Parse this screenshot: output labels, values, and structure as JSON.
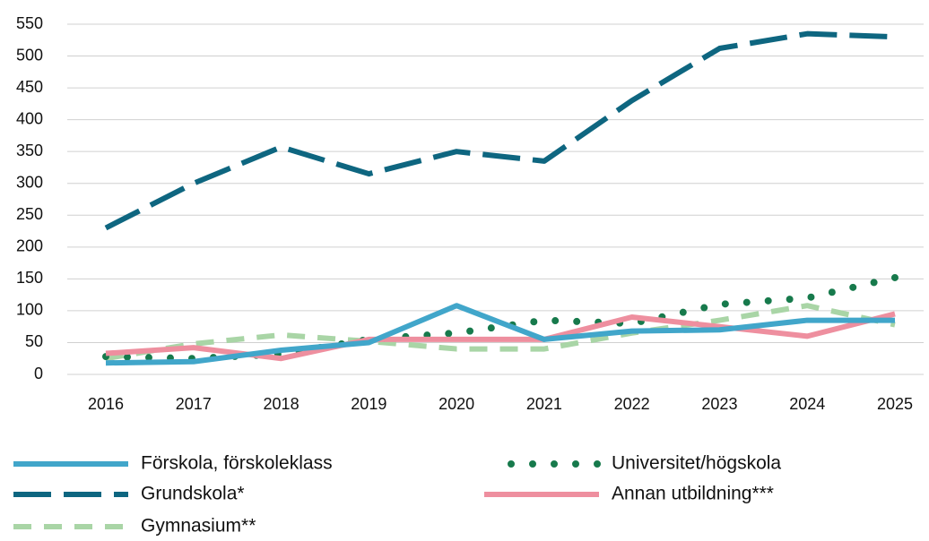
{
  "chart_data": {
    "type": "line",
    "categories": [
      "2016",
      "2017",
      "2018",
      "2019",
      "2020",
      "2021",
      "2022",
      "2023",
      "2024",
      "2025"
    ],
    "series": [
      {
        "name": "Förskola, förskoleklass",
        "color": "#41a6ca",
        "style": "solid",
        "values": [
          18,
          20,
          38,
          50,
          108,
          55,
          68,
          70,
          85,
          85
        ]
      },
      {
        "name": "Grundskola*",
        "color": "#0e6680",
        "style": "dashed",
        "values": [
          230,
          300,
          357,
          315,
          350,
          335,
          430,
          512,
          535,
          530
        ]
      },
      {
        "name": "Gymnasium**",
        "color": "#a9d5a6",
        "style": "short-dashed",
        "values": [
          25,
          48,
          62,
          52,
          40,
          40,
          65,
          85,
          108,
          78
        ]
      },
      {
        "name": "Universitet/högskola",
        "color": "#177a4c",
        "style": "dotted",
        "values": [
          28,
          25,
          32,
          55,
          65,
          85,
          80,
          110,
          120,
          152
        ]
      },
      {
        "name": "Annan utbildning***",
        "color": "#ee8f9f",
        "style": "solid",
        "values": [
          33,
          42,
          25,
          55,
          55,
          55,
          90,
          75,
          60,
          95
        ]
      }
    ],
    "ylim": [
      0,
      550
    ],
    "yticks": [
      0,
      50,
      100,
      150,
      200,
      250,
      300,
      350,
      400,
      450,
      500,
      550
    ],
    "grid": true
  }
}
